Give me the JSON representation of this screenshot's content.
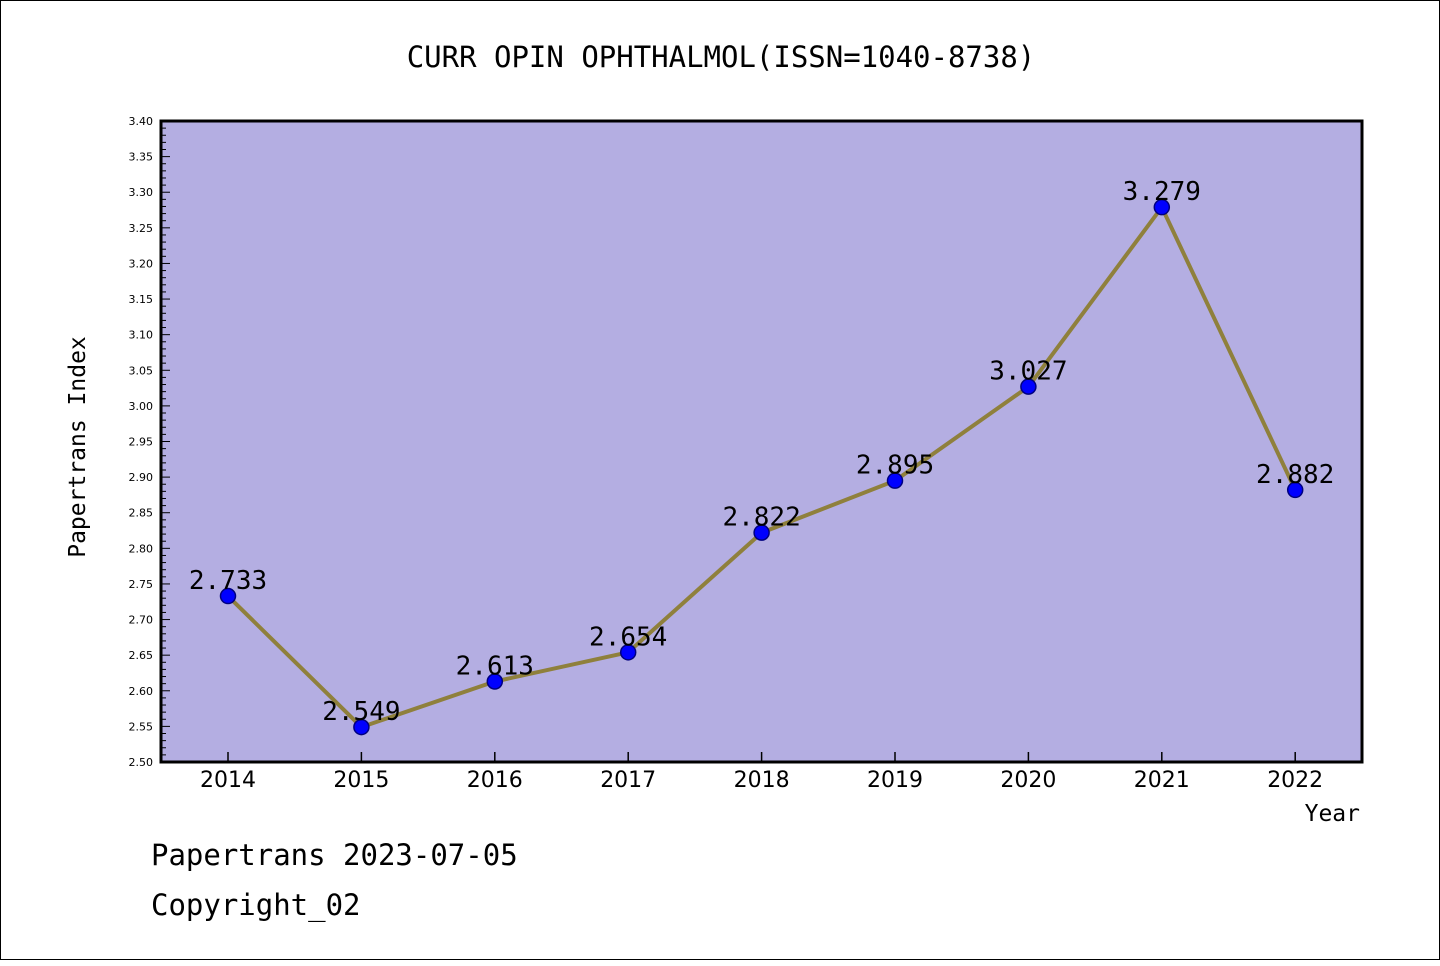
{
  "chart_data": {
    "type": "line",
    "title": "CURR OPIN OPHTHALMOL(ISSN=1040-8738)",
    "xlabel": "Year",
    "ylabel": "Papertrans Index",
    "x": [
      "2014",
      "2015",
      "2016",
      "2017",
      "2018",
      "2019",
      "2020",
      "2021",
      "2022"
    ],
    "series": [
      {
        "values": [
          2.733,
          2.549,
          2.613,
          2.654,
          2.822,
          2.895,
          3.027,
          3.279,
          2.882
        ]
      }
    ],
    "data_labels": [
      "2.733",
      "2.549",
      "2.613",
      "2.654",
      "2.822",
      "2.895",
      "3.027",
      "3.279",
      "2.882"
    ],
    "ylim": [
      2.5,
      3.4
    ],
    "yticks": [
      "2.50",
      "2.55",
      "2.60",
      "2.65",
      "2.70",
      "2.75",
      "2.80",
      "2.85",
      "2.90",
      "2.95",
      "3.00",
      "3.05",
      "3.10",
      "3.15",
      "3.20",
      "3.25",
      "3.30",
      "3.35",
      "3.40"
    ],
    "grid": false,
    "legend": "none",
    "colors": {
      "plot_background": "#b4aee2",
      "line": "#8f803c",
      "marker": "#0000ff",
      "marker_edge": "#000080"
    }
  },
  "footer": {
    "line1": "Papertrans 2023-07-05",
    "line2": "Copyright_02"
  }
}
